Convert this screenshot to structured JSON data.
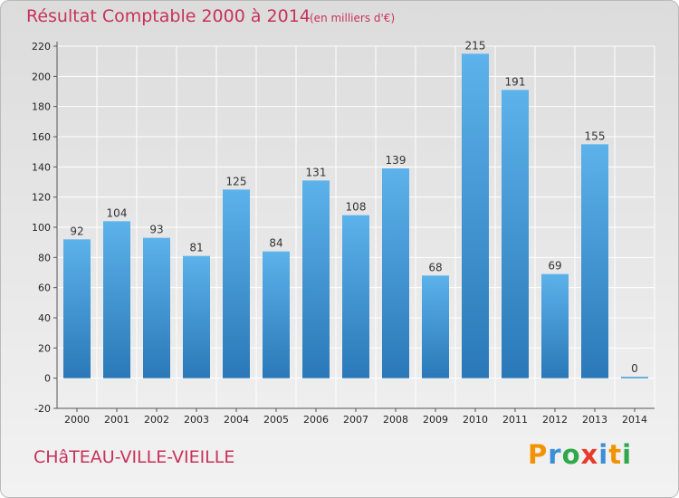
{
  "header": {
    "title": "Résultat Comptable 2000 à 2014",
    "subtitle": "(en milliers d'€)"
  },
  "footer": {
    "commune": "CHâTEAU-VILLE-VIEILLE",
    "logo_text": "Proxiti"
  },
  "colors": {
    "title": "#c8325a",
    "bar_light": "#5aafe8",
    "bar_dark": "#2b7bbd",
    "grid": "#ffffff"
  },
  "chart_data": {
    "type": "bar",
    "title": "Résultat Comptable 2000 à 2014",
    "subtitle": "(en milliers d'€)",
    "categories": [
      "2000",
      "2001",
      "2002",
      "2003",
      "2004",
      "2005",
      "2006",
      "2007",
      "2008",
      "2009",
      "2010",
      "2011",
      "2012",
      "2013",
      "2014"
    ],
    "values": [
      92,
      104,
      93,
      81,
      125,
      84,
      131,
      108,
      139,
      68,
      215,
      191,
      69,
      155,
      0
    ],
    "ylim": [
      -20,
      220
    ],
    "yticks": [
      -20,
      0,
      20,
      40,
      60,
      80,
      100,
      120,
      140,
      160,
      180,
      200,
      220
    ],
    "grid": true,
    "legend": "none"
  }
}
